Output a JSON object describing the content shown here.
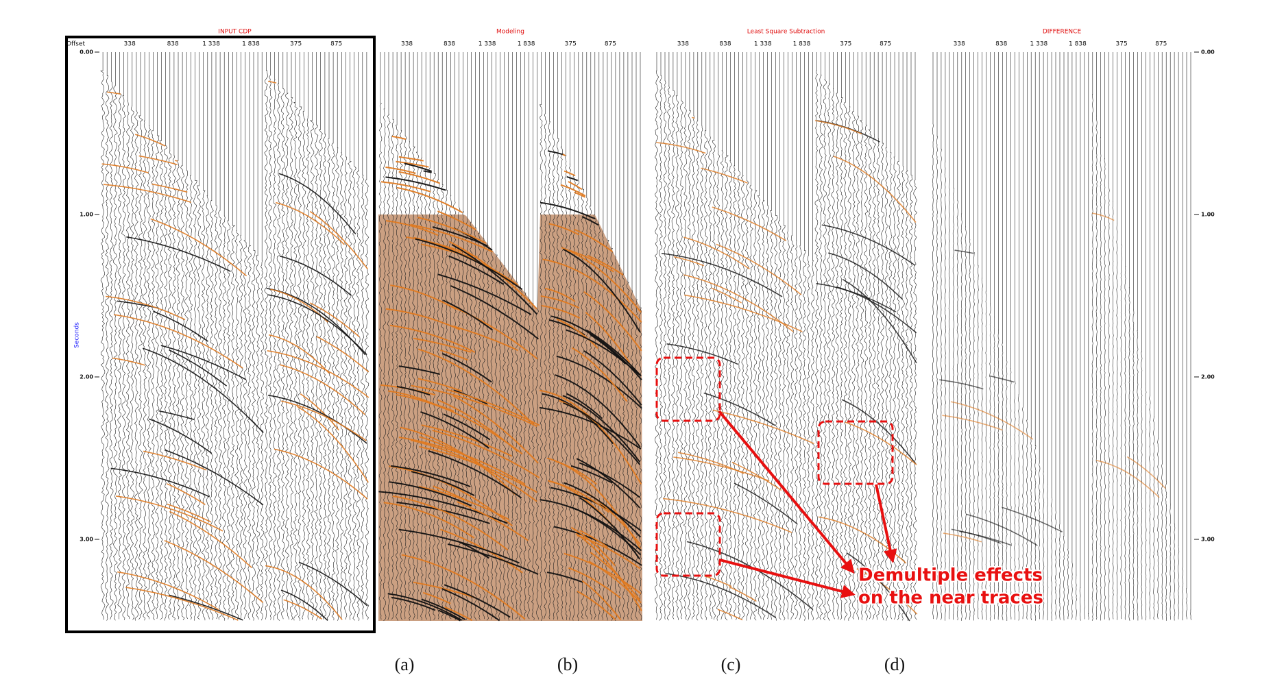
{
  "panels": [
    {
      "title": "INPUT CDP",
      "offsets": [
        "338",
        "838",
        "1 338",
        "1 838",
        "375",
        "875"
      ]
    },
    {
      "title": "Modeling",
      "offsets": [
        "338",
        "838",
        "1 338",
        "1 838",
        "375",
        "875"
      ]
    },
    {
      "title": "Least Square Subtraction",
      "offsets": [
        "338",
        "838",
        "1 338",
        "1 838",
        "375",
        "875"
      ]
    },
    {
      "title": "DIFFERENCE",
      "offsets": [
        "338",
        "838",
        "1 338",
        "1 838",
        "375",
        "875"
      ]
    }
  ],
  "axis": {
    "offset_label": "Offset",
    "y_label": "Seconds",
    "time_ticks": [
      "0.00",
      "1.00",
      "2.00",
      "3.00"
    ]
  },
  "annotation": {
    "lines": [
      "Demultiple effects",
      "on the near traces"
    ]
  },
  "captions": [
    "(a)",
    "(b)",
    "(c)",
    "(d)"
  ]
}
